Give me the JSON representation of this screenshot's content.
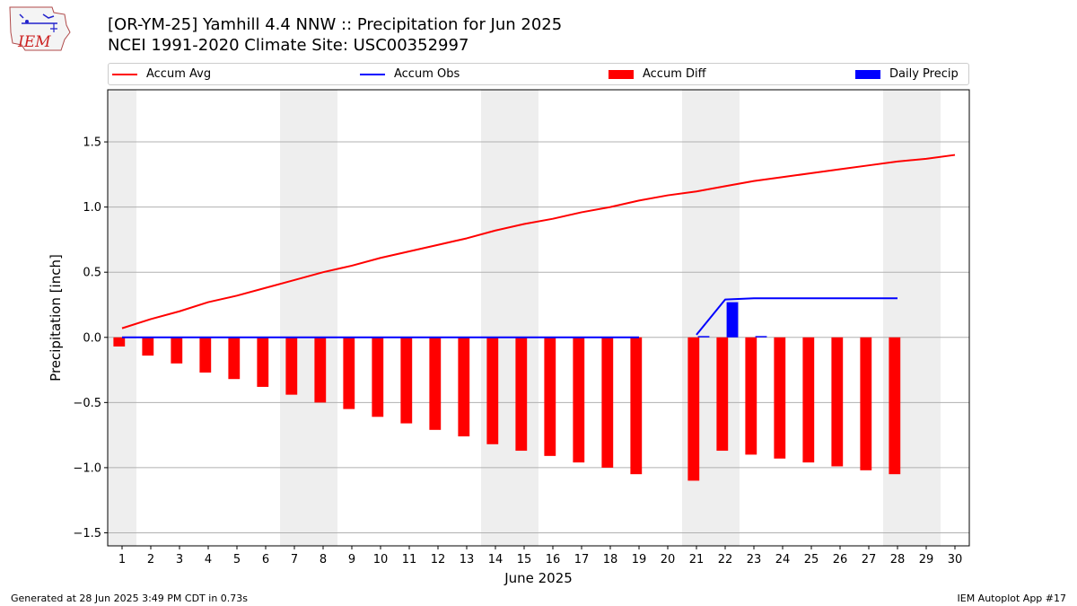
{
  "header": {
    "title_line1": "[OR-YM-25] Yamhill 4.4 NNW :: Precipitation for Jun 2025",
    "title_line2": "NCEI 1991-2020 Climate Site: USC00352997",
    "logo_text": "IEM"
  },
  "footer": {
    "generated": "Generated at 28 Jun 2025 3:49 PM CDT in 0.73s",
    "app": "IEM Autoplot App #17"
  },
  "legend": [
    {
      "label": "Accum Avg",
      "kind": "line",
      "color": "#ff0000"
    },
    {
      "label": "Accum Obs",
      "kind": "line",
      "color": "#0000ff"
    },
    {
      "label": "Accum Diff",
      "kind": "box",
      "color": "#ff0000"
    },
    {
      "label": "Daily Precip",
      "kind": "box",
      "color": "#0000ff"
    }
  ],
  "chart_data": {
    "type": "bar",
    "xlabel": "June 2025",
    "ylabel": "Precipitation [inch]",
    "ylim": [
      -1.6,
      1.9
    ],
    "yticks": [
      -1.5,
      -1.0,
      -0.5,
      0.0,
      0.5,
      1.0,
      1.5
    ],
    "ytick_labels": [
      "−1.5",
      "−1.0",
      "−0.5",
      "0.0",
      "0.5",
      "1.0",
      "1.5"
    ],
    "xlim": [
      0.5,
      30.5
    ],
    "days": [
      1,
      2,
      3,
      4,
      5,
      6,
      7,
      8,
      9,
      10,
      11,
      12,
      13,
      14,
      15,
      16,
      17,
      18,
      19,
      20,
      21,
      22,
      23,
      24,
      25,
      26,
      27,
      28,
      29,
      30
    ],
    "weekend_shading": [
      [
        0.5,
        1.5
      ],
      [
        6.5,
        8.5
      ],
      [
        13.5,
        15.5
      ],
      [
        20.5,
        22.5
      ],
      [
        27.5,
        29.5
      ]
    ],
    "grid": "horizontal",
    "legend_position": "top",
    "series": [
      {
        "name": "Accum Avg",
        "kind": "line",
        "color": "#ff0000",
        "x": [
          1,
          2,
          3,
          4,
          5,
          6,
          7,
          8,
          9,
          10,
          11,
          12,
          13,
          14,
          15,
          16,
          17,
          18,
          19,
          20,
          21,
          22,
          23,
          24,
          25,
          26,
          27,
          28,
          29,
          30
        ],
        "values": [
          0.07,
          0.14,
          0.2,
          0.27,
          0.32,
          0.38,
          0.44,
          0.5,
          0.55,
          0.61,
          0.66,
          0.71,
          0.76,
          0.82,
          0.87,
          0.91,
          0.96,
          1.0,
          1.05,
          1.09,
          1.12,
          1.16,
          1.2,
          1.23,
          1.26,
          1.29,
          1.32,
          1.35,
          1.37,
          1.4
        ]
      },
      {
        "name": "Accum Obs",
        "kind": "line",
        "color": "#0000ff",
        "segments": [
          {
            "x": [
              1,
              2,
              3,
              4,
              5,
              6,
              7,
              8,
              9,
              10,
              11,
              12,
              13,
              14,
              15,
              16,
              17,
              18,
              19
            ],
            "values": [
              0,
              0,
              0,
              0,
              0,
              0,
              0,
              0,
              0,
              0,
              0,
              0,
              0,
              0,
              0,
              0,
              0,
              0,
              0
            ]
          },
          {
            "x": [
              21,
              22,
              23,
              24,
              25,
              26,
              27,
              28
            ],
            "values": [
              0.02,
              0.29,
              0.3,
              0.3,
              0.3,
              0.3,
              0.3,
              0.3
            ]
          }
        ]
      },
      {
        "name": "Accum Diff",
        "kind": "bar",
        "color": "#ff0000",
        "x": [
          1,
          2,
          3,
          4,
          5,
          6,
          7,
          8,
          9,
          10,
          11,
          12,
          13,
          14,
          15,
          16,
          17,
          18,
          19,
          21,
          22,
          23,
          24,
          25,
          26,
          27,
          28
        ],
        "values": [
          -0.07,
          -0.14,
          -0.2,
          -0.27,
          -0.32,
          -0.38,
          -0.44,
          -0.5,
          -0.55,
          -0.61,
          -0.66,
          -0.71,
          -0.76,
          -0.82,
          -0.87,
          -0.91,
          -0.96,
          -1.0,
          -1.05,
          -1.1,
          -0.87,
          -0.9,
          -0.93,
          -0.96,
          -0.99,
          -1.02,
          -1.05
        ]
      },
      {
        "name": "Daily Precip",
        "kind": "bar",
        "color": "#0000ff",
        "x": [
          21,
          22,
          23
        ],
        "values": [
          0.01,
          0.27,
          0.01
        ]
      }
    ]
  }
}
